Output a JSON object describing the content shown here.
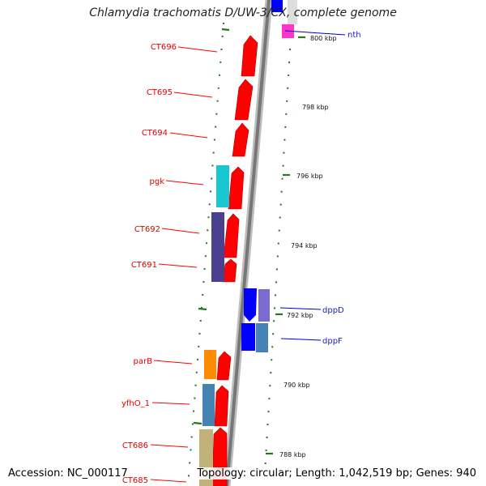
{
  "title": "Chlamydia trachomatis D/UW-3/CX, complete genome",
  "accession": "Accession: NC_000117",
  "topology": "Topology: circular; Length: 1,042,519 bp; Genes: 940",
  "colors": {
    "forward": "#ff0000",
    "reverse_label": "#1a1adb",
    "tick": "#1f7a1f",
    "backbone": "#888888"
  },
  "kbp_labels": [
    "800 kbp",
    "798 kbp",
    "796 kbp",
    "794 kbp",
    "792 kbp",
    "790 kbp",
    "788 kbp"
  ],
  "left_genes": [
    "CT696",
    "CT695",
    "CT694",
    "pgk",
    "CT692",
    "CT691",
    "parB",
    "yfhO_1",
    "CT686",
    "CT685"
  ],
  "right_genes": [
    "nth",
    "dppD",
    "dppF"
  ]
}
